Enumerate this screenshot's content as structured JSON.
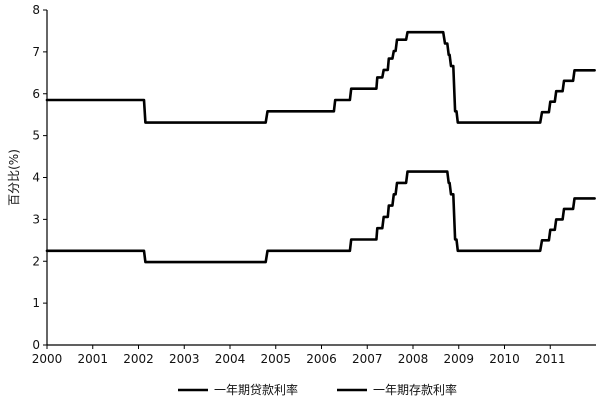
{
  "chart_data": {
    "type": "line",
    "title": "",
    "xlabel": "",
    "ylabel": "百分比(%)",
    "xlim": [
      2000,
      2012
    ],
    "ylim": [
      0,
      8
    ],
    "x_ticks": [
      "2000",
      "2001",
      "2002",
      "2003",
      "2004",
      "2005",
      "2006",
      "2007",
      "2008",
      "2009",
      "2010",
      "2011"
    ],
    "y_ticks": [
      "0",
      "1",
      "2",
      "3",
      "4",
      "5",
      "6",
      "7",
      "8"
    ],
    "grid": false,
    "legend_position": "bottom",
    "line_color": "#000000",
    "series": [
      {
        "name": "一年期贷款利率",
        "x": [
          2000.0,
          2002.12,
          2002.15,
          2004.78,
          2004.82,
          2006.27,
          2006.3,
          2006.62,
          2006.65,
          2007.2,
          2007.22,
          2007.33,
          2007.36,
          2007.45,
          2007.47,
          2007.55,
          2007.58,
          2007.62,
          2007.65,
          2007.7,
          2007.72,
          2007.85,
          2007.88,
          2008.05,
          2008.08,
          2008.66,
          2008.7,
          2008.75,
          2008.78,
          2008.8,
          2008.83,
          2008.88,
          2008.92,
          2008.95,
          2008.98,
          2010.78,
          2010.82,
          2010.97,
          2011.0,
          2011.1,
          2011.13,
          2011.27,
          2011.3,
          2011.5,
          2011.53,
          2011.97
        ],
        "values": [
          5.85,
          5.85,
          5.31,
          5.31,
          5.58,
          5.58,
          5.85,
          5.85,
          6.12,
          6.12,
          6.39,
          6.39,
          6.57,
          6.57,
          6.84,
          6.84,
          7.02,
          7.02,
          7.29,
          7.29,
          7.29,
          7.29,
          7.47,
          7.47,
          7.47,
          7.47,
          7.2,
          7.2,
          6.93,
          6.93,
          6.66,
          6.66,
          5.58,
          5.58,
          5.31,
          5.31,
          5.56,
          5.56,
          5.81,
          5.81,
          6.06,
          6.06,
          6.31,
          6.31,
          6.56,
          6.56
        ]
      },
      {
        "name": "一年期存款利率",
        "x": [
          2000.0,
          2002.12,
          2002.15,
          2004.78,
          2004.82,
          2006.62,
          2006.65,
          2007.2,
          2007.22,
          2007.33,
          2007.36,
          2007.45,
          2007.47,
          2007.55,
          2007.58,
          2007.62,
          2007.65,
          2007.7,
          2007.72,
          2007.85,
          2007.88,
          2008.75,
          2008.78,
          2008.8,
          2008.83,
          2008.88,
          2008.92,
          2008.95,
          2008.98,
          2010.78,
          2010.82,
          2010.97,
          2011.0,
          2011.1,
          2011.13,
          2011.27,
          2011.3,
          2011.5,
          2011.53,
          2011.97
        ],
        "values": [
          2.25,
          2.25,
          1.98,
          1.98,
          2.25,
          2.25,
          2.52,
          2.52,
          2.79,
          2.79,
          3.06,
          3.06,
          3.33,
          3.33,
          3.6,
          3.6,
          3.87,
          3.87,
          3.87,
          3.87,
          4.14,
          4.14,
          3.87,
          3.87,
          3.6,
          3.6,
          2.52,
          2.52,
          2.25,
          2.25,
          2.5,
          2.5,
          2.75,
          2.75,
          3.0,
          3.0,
          3.25,
          3.25,
          3.5,
          3.5
        ]
      }
    ]
  }
}
